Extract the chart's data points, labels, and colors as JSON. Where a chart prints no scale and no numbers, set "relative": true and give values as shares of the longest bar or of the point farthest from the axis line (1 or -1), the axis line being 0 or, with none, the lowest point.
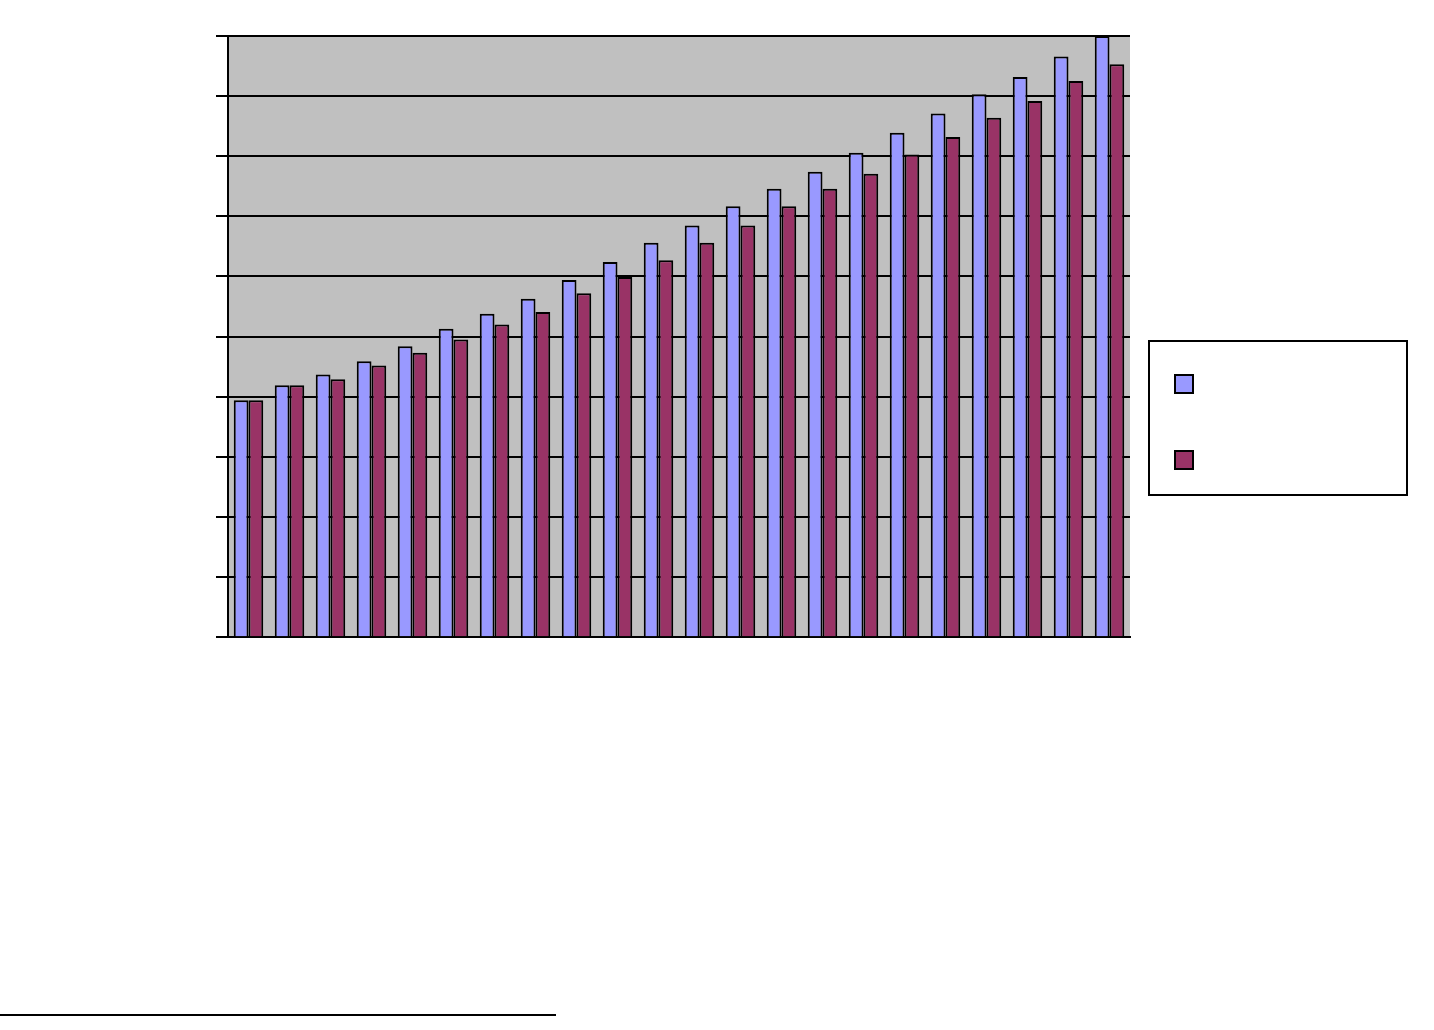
{
  "chart_data": {
    "type": "bar",
    "relative": true,
    "grid": "y",
    "categories": [
      null,
      null,
      null,
      null,
      null,
      null,
      null,
      null,
      null,
      null,
      null,
      null,
      null,
      null,
      null,
      null,
      null,
      null,
      null,
      null,
      null,
      null
    ],
    "series": [
      {
        "color": "#9999ff",
        "values": [
          0.394,
          0.419,
          0.437,
          0.459,
          0.484,
          0.513,
          0.538,
          0.563,
          0.594,
          0.624,
          0.656,
          0.685,
          0.717,
          0.746,
          0.774,
          0.806,
          0.839,
          0.871,
          0.903,
          0.932,
          0.966,
          1
        ]
      },
      {
        "color": "#993366",
        "values": [
          0.394,
          0.419,
          0.429,
          0.452,
          0.473,
          0.495,
          0.52,
          0.541,
          0.572,
          0.599,
          0.627,
          0.656,
          0.685,
          0.717,
          0.746,
          0.771,
          0.803,
          0.832,
          0.864,
          0.892,
          0.925,
          0.953
        ]
      }
    ]
  }
}
